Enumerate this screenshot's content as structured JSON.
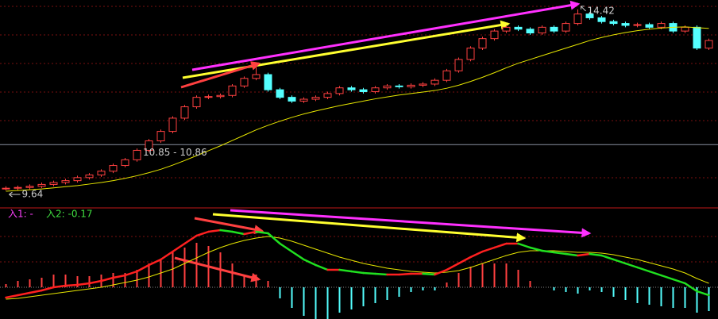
{
  "chart_data": [
    {
      "type": "candlestick",
      "open": [
        9.68,
        9.7,
        9.72,
        9.75,
        9.8,
        9.85,
        9.9,
        9.98,
        10.05,
        10.15,
        10.3,
        10.45,
        10.7,
        10.95,
        11.2,
        11.55,
        11.85,
        12.1,
        12.12,
        12.15,
        12.4,
        12.6,
        12.7,
        12.3,
        12.1,
        12.0,
        12.05,
        12.1,
        12.2,
        12.35,
        12.3,
        12.25,
        12.35,
        12.4,
        12.38,
        12.42,
        12.45,
        12.55,
        12.8,
        13.1,
        13.4,
        13.65,
        13.85,
        13.95,
        13.9,
        13.8,
        13.95,
        13.85,
        14.05,
        14.3,
        14.2,
        14.1,
        14.05,
        14.0,
        14.02,
        13.95,
        14.05,
        13.85,
        13.95,
        13.4
      ],
      "close": [
        9.7,
        9.72,
        9.75,
        9.8,
        9.85,
        9.9,
        9.98,
        10.05,
        10.15,
        10.3,
        10.45,
        10.7,
        10.95,
        11.2,
        11.55,
        11.85,
        12.1,
        12.12,
        12.15,
        12.4,
        12.6,
        12.7,
        12.3,
        12.1,
        12.0,
        12.05,
        12.1,
        12.2,
        12.35,
        12.3,
        12.25,
        12.35,
        12.4,
        12.38,
        12.42,
        12.45,
        12.55,
        12.8,
        13.1,
        13.4,
        13.65,
        13.85,
        13.95,
        13.9,
        13.8,
        13.95,
        13.85,
        14.05,
        14.3,
        14.2,
        14.1,
        14.05,
        14.0,
        14.02,
        13.95,
        14.05,
        13.85,
        13.95,
        13.4,
        13.6
      ],
      "high": [
        9.75,
        9.77,
        9.8,
        9.85,
        9.9,
        9.95,
        10.03,
        10.1,
        10.2,
        10.35,
        10.5,
        10.75,
        11.0,
        11.25,
        11.6,
        11.9,
        12.15,
        12.17,
        12.2,
        12.45,
        12.65,
        12.95,
        12.75,
        12.35,
        12.15,
        12.1,
        12.15,
        12.25,
        12.4,
        12.4,
        12.35,
        12.4,
        12.45,
        12.45,
        12.47,
        12.5,
        12.6,
        12.85,
        13.15,
        13.45,
        13.7,
        13.9,
        14.0,
        14.0,
        13.95,
        14.0,
        14.0,
        14.1,
        14.42,
        14.35,
        14.25,
        14.15,
        14.1,
        14.07,
        14.07,
        14.1,
        14.1,
        14.0,
        14.0,
        13.65
      ],
      "low": [
        9.64,
        9.65,
        9.67,
        9.7,
        9.75,
        9.8,
        9.85,
        9.93,
        10.0,
        10.1,
        10.25,
        10.4,
        10.65,
        10.9,
        11.15,
        11.5,
        11.8,
        12.05,
        12.07,
        12.1,
        12.35,
        12.55,
        12.25,
        12.05,
        11.95,
        11.95,
        12.0,
        12.05,
        12.15,
        12.25,
        12.2,
        12.2,
        12.3,
        12.33,
        12.33,
        12.37,
        12.4,
        12.5,
        12.75,
        13.05,
        13.35,
        13.6,
        13.8,
        13.85,
        13.75,
        13.75,
        13.8,
        13.8,
        14.0,
        14.15,
        14.05,
        14.0,
        13.95,
        13.95,
        13.9,
        13.9,
        13.8,
        13.8,
        13.35,
        13.35
      ],
      "ma_values": [
        9.62,
        9.64,
        9.66,
        9.68,
        9.71,
        9.74,
        9.77,
        9.81,
        9.85,
        9.9,
        9.96,
        10.03,
        10.11,
        10.2,
        10.31,
        10.43,
        10.56,
        10.69,
        10.82,
        10.96,
        11.1,
        11.24,
        11.36,
        11.47,
        11.57,
        11.66,
        11.74,
        11.81,
        11.88,
        11.94,
        12.0,
        12.06,
        12.11,
        12.16,
        12.2,
        12.24,
        12.28,
        12.34,
        12.42,
        12.52,
        12.63,
        12.75,
        12.88,
        13.0,
        13.1,
        13.2,
        13.3,
        13.4,
        13.5,
        13.6,
        13.68,
        13.75,
        13.81,
        13.86,
        13.9,
        13.93,
        13.95,
        13.96,
        13.94,
        13.92
      ],
      "up_color": "#ff4040",
      "down_color": "#54ffff",
      "ma_color": "#e6e600",
      "ylim": [
        9.18,
        14.67
      ],
      "max_label": {
        "label": "14.42",
        "value": 14.42
      },
      "min_label": {
        "label": "9.64",
        "value": 9.64
      },
      "price_line": {
        "label": "10.85 - 10.86",
        "value": 10.85
      }
    },
    {
      "type": "macd",
      "dif": [
        -0.13,
        -0.1,
        -0.07,
        -0.04,
        0.0,
        0.02,
        0.03,
        0.05,
        0.08,
        0.12,
        0.15,
        0.2,
        0.28,
        0.35,
        0.45,
        0.55,
        0.65,
        0.7,
        0.72,
        0.7,
        0.67,
        0.7,
        0.68,
        0.55,
        0.45,
        0.35,
        0.28,
        0.22,
        0.22,
        0.2,
        0.18,
        0.17,
        0.16,
        0.16,
        0.17,
        0.17,
        0.16,
        0.22,
        0.3,
        0.38,
        0.45,
        0.5,
        0.55,
        0.55,
        0.5,
        0.46,
        0.44,
        0.42,
        0.4,
        0.42,
        0.4,
        0.35,
        0.3,
        0.25,
        0.2,
        0.15,
        0.1,
        0.05,
        -0.05,
        -0.1
      ],
      "dea": [
        -0.15,
        -0.14,
        -0.12,
        -0.1,
        -0.08,
        -0.06,
        -0.04,
        -0.02,
        0.0,
        0.03,
        0.06,
        0.09,
        0.13,
        0.18,
        0.23,
        0.3,
        0.37,
        0.44,
        0.5,
        0.55,
        0.59,
        0.62,
        0.64,
        0.62,
        0.58,
        0.53,
        0.48,
        0.43,
        0.38,
        0.34,
        0.3,
        0.27,
        0.24,
        0.22,
        0.2,
        0.19,
        0.18,
        0.19,
        0.21,
        0.25,
        0.3,
        0.35,
        0.4,
        0.44,
        0.46,
        0.46,
        0.46,
        0.45,
        0.44,
        0.44,
        0.43,
        0.41,
        0.38,
        0.35,
        0.31,
        0.27,
        0.23,
        0.18,
        0.11,
        0.05
      ],
      "hist": [
        0.04,
        0.08,
        0.1,
        0.12,
        0.16,
        0.16,
        0.14,
        0.14,
        0.16,
        0.18,
        0.18,
        0.22,
        0.3,
        0.34,
        0.44,
        0.5,
        0.56,
        0.52,
        0.44,
        0.3,
        0.16,
        0.16,
        0.08,
        -0.14,
        -0.26,
        -0.36,
        -0.4,
        -0.42,
        -0.32,
        -0.28,
        -0.24,
        -0.2,
        -0.16,
        -0.12,
        -0.06,
        -0.04,
        -0.04,
        0.06,
        0.18,
        0.26,
        0.3,
        0.3,
        0.3,
        0.22,
        0.08,
        0,
        -0.04,
        -0.06,
        -0.08,
        -0.04,
        -0.06,
        -0.12,
        -0.16,
        -0.2,
        -0.22,
        -0.24,
        -0.26,
        -0.26,
        -0.32,
        -0.3
      ],
      "rise_color": "#ff2020",
      "fall_color": "#20e020",
      "dea_color": "#e6e600",
      "pos_color": "#ff4040",
      "neg_color": "#54ffff",
      "ylim": [
        -0.4,
        0.97
      ],
      "label1": "入1: -",
      "label2": "入2: -0.17"
    }
  ]
}
